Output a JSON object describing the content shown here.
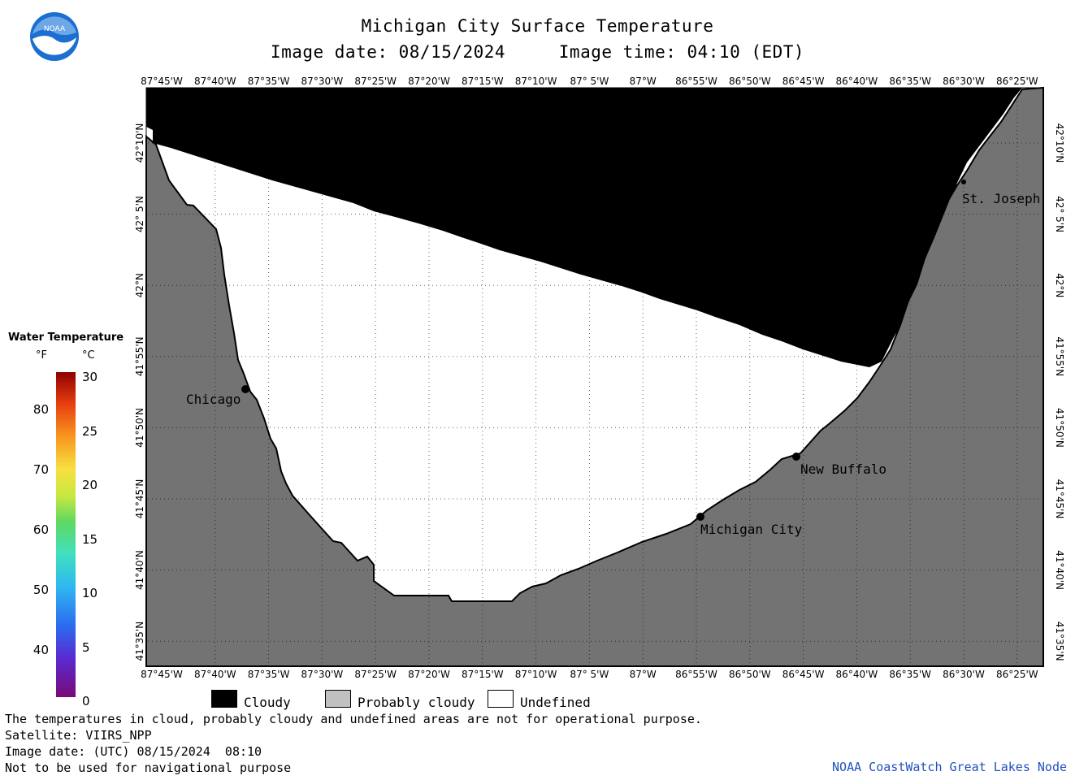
{
  "header": {
    "title": "Michigan City Surface Temperature",
    "subtitle": "Image date: 08/15/2024     Image time: 04:10 (EDT)"
  },
  "logo": {
    "text": "NOAA",
    "icon": "noaa-logo-icon"
  },
  "axes": {
    "lon_labels": [
      "87°45'W",
      "87°40'W",
      "87°35'W",
      "87°30'W",
      "87°25'W",
      "87°20'W",
      "87°15'W",
      "87°10'W",
      "87° 5'W",
      "87°W",
      "86°55'W",
      "86°50'W",
      "86°45'W",
      "86°40'W",
      "86°35'W",
      "86°30'W",
      "86°25'W"
    ],
    "lat_labels": [
      "42°10'N",
      "42° 5'N",
      "42°N",
      "41°55'N",
      "41°50'N",
      "41°45'N",
      "41°40'N",
      "41°35'N"
    ]
  },
  "cities": [
    {
      "name": "Chicago"
    },
    {
      "name": "Michigan City"
    },
    {
      "name": "New Buffalo"
    },
    {
      "name": "St. Joseph"
    }
  ],
  "temperature_legend": {
    "title": "Water Temperature",
    "f_unit": "°F",
    "c_unit": "°C",
    "f_ticks": [
      "80",
      "70",
      "60",
      "50",
      "40"
    ],
    "c_ticks": [
      "30",
      "25",
      "20",
      "15",
      "10",
      "5",
      "0"
    ]
  },
  "category_legend": [
    {
      "label": "Cloudy",
      "color": "#000000"
    },
    {
      "label": "Probably cloudy",
      "color": "#c0c0c0"
    },
    {
      "label": "Undefined",
      "color": "#ffffff"
    }
  ],
  "colors": {
    "land": "#737373",
    "cloud": "#000000",
    "undefined": "#ffffff"
  },
  "footer": {
    "line1": "The temperatures in cloud, probably cloudy and undefined areas are not for operational purpose.",
    "line2": "Satellite: VIIRS_NPP",
    "line3": "Image date: (UTC) 08/15/2024  08:10",
    "line4": "Not to be used for navigational purpose",
    "credit": "NOAA CoastWatch Great Lakes Node"
  }
}
